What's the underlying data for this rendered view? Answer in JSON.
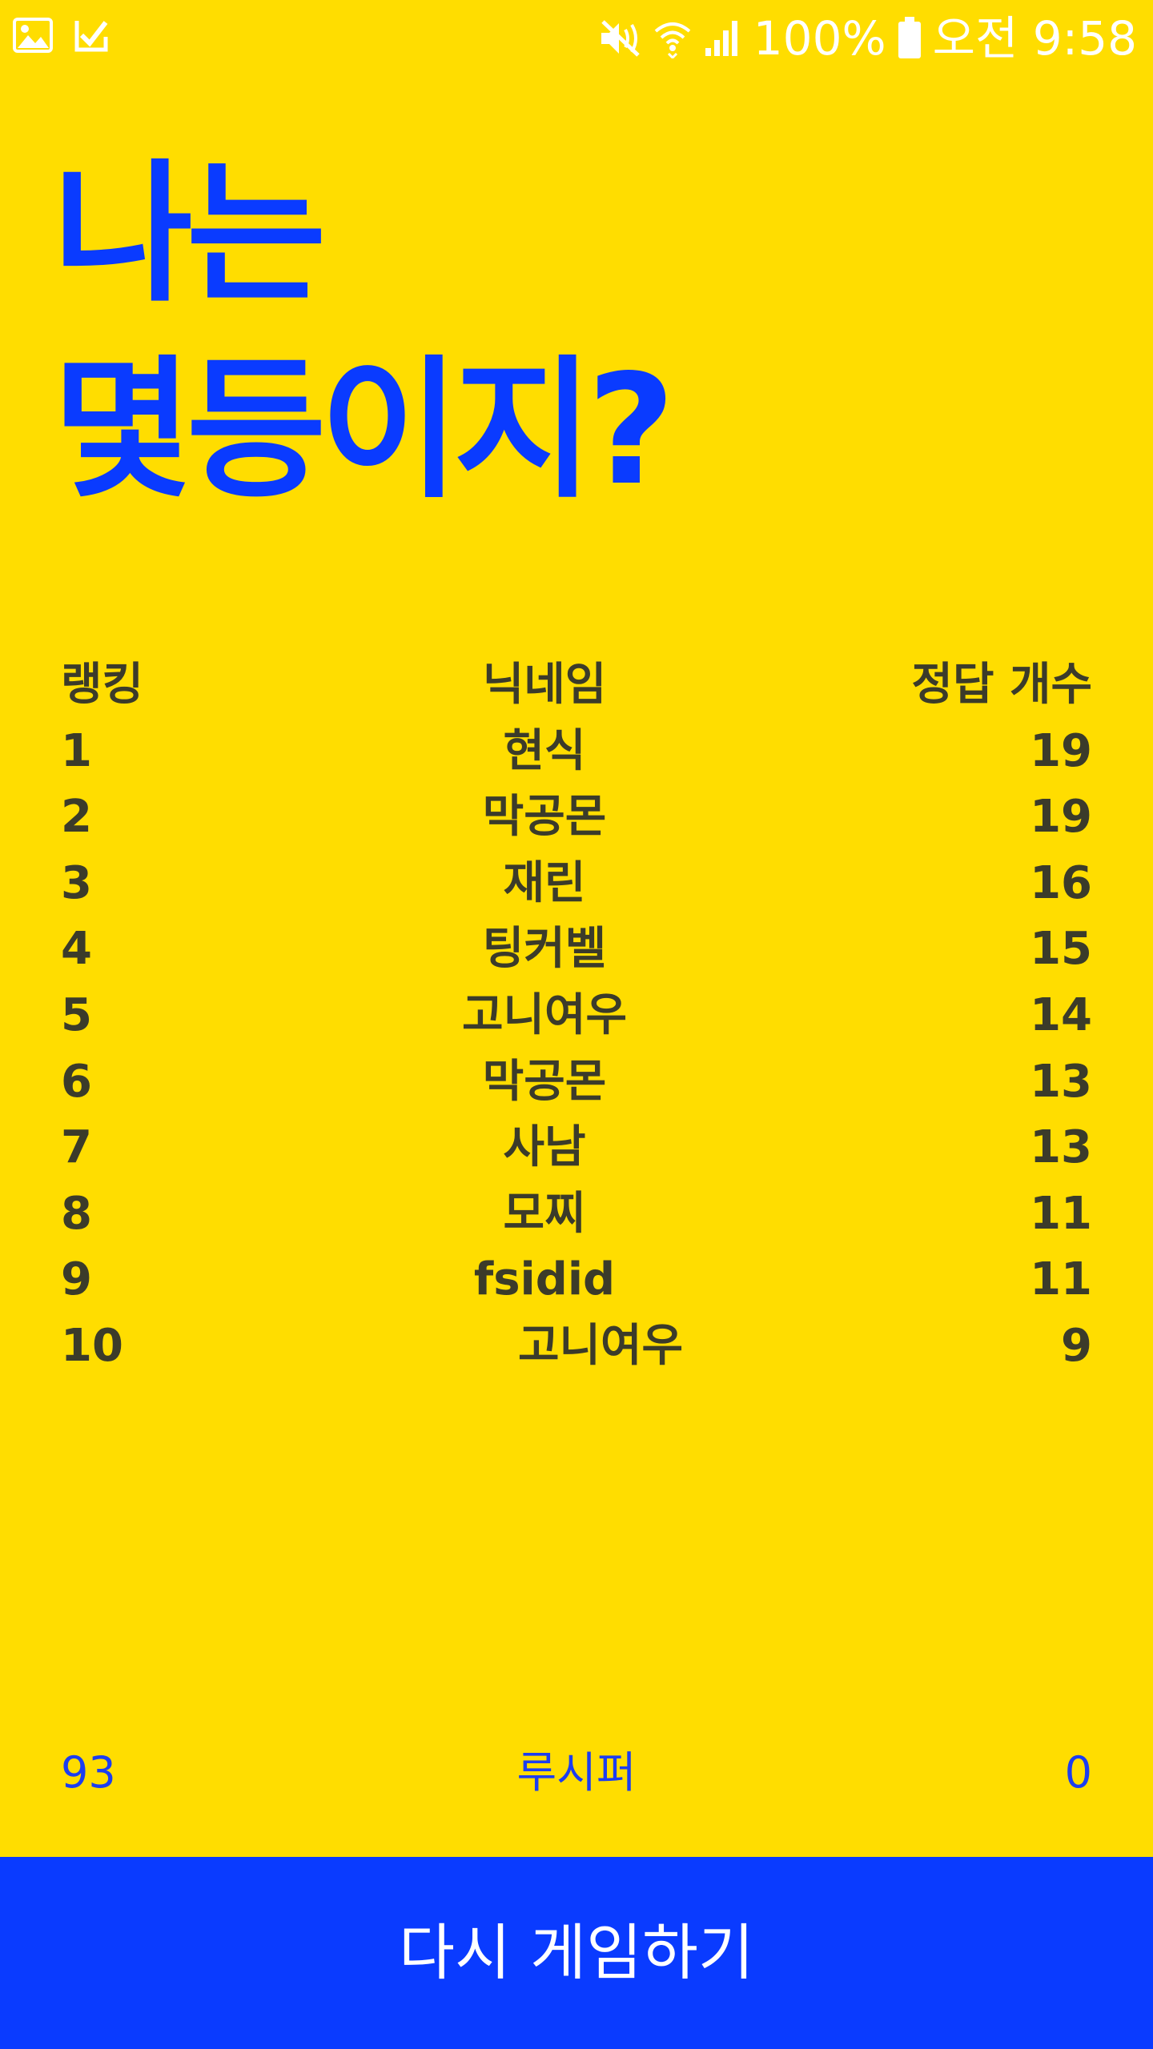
{
  "status_bar": {
    "battery_text": "100%",
    "time": "오전 9:58",
    "icons": [
      "gallery-icon",
      "check-notification-icon",
      "mute-icon",
      "wifi-icon",
      "signal-icon",
      "battery-icon"
    ]
  },
  "title": {
    "line1": "나는",
    "line2": "몇등이지?"
  },
  "ranking": {
    "headers": {
      "rank": "랭킹",
      "nickname": "닉네임",
      "score": "정답 개수"
    },
    "rows": [
      {
        "rank": "1",
        "nickname": "현식",
        "score": "19"
      },
      {
        "rank": "2",
        "nickname": "막공몬",
        "score": "19"
      },
      {
        "rank": "3",
        "nickname": "재린",
        "score": "16"
      },
      {
        "rank": "4",
        "nickname": "팅커벨",
        "score": "15"
      },
      {
        "rank": "5",
        "nickname": "고니여우",
        "score": "14"
      },
      {
        "rank": "6",
        "nickname": "막공몬",
        "score": "13"
      },
      {
        "rank": "7",
        "nickname": "사남",
        "score": "13"
      },
      {
        "rank": "8",
        "nickname": "모찌",
        "score": "11"
      },
      {
        "rank": "9",
        "nickname": "fsidid",
        "score": "11"
      },
      {
        "rank": "10",
        "nickname": "고니여우",
        "score": "9"
      }
    ]
  },
  "my_result": {
    "rank": "93",
    "nickname": "루시퍼",
    "score": "0"
  },
  "button": {
    "label": "다시 게임하기"
  },
  "colors": {
    "background": "#FFDD00",
    "accent": "#0A3BFF",
    "text": "#3B3B2A"
  }
}
